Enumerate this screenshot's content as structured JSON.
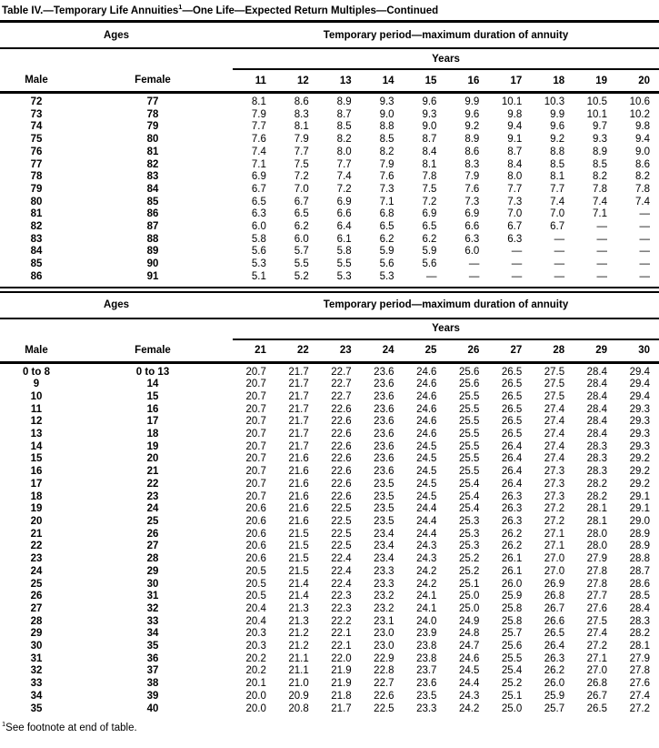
{
  "title": {
    "prefix": "Table IV.—Temporary Life Annuities",
    "footnote_marker": "1",
    "suffix": "—One Life—Expected Return Multiples—Continued"
  },
  "labels": {
    "ages": "Ages",
    "period": "Temporary period—maximum duration of annuity",
    "years": "Years",
    "male": "Male",
    "female": "Female"
  },
  "colors": {
    "text": "#000000",
    "background": "#ffffff",
    "rule": "#000000"
  },
  "footnote": {
    "marker": "1",
    "text": "See footnote at end of table."
  },
  "tables": [
    {
      "years": [
        "11",
        "12",
        "13",
        "14",
        "15",
        "16",
        "17",
        "18",
        "19",
        "20"
      ],
      "rows": [
        {
          "male": "72",
          "female": "77",
          "values": [
            "8.1",
            "8.6",
            "8.9",
            "9.3",
            "9.6",
            "9.9",
            "10.1",
            "10.3",
            "10.5",
            "10.6"
          ]
        },
        {
          "male": "73",
          "female": "78",
          "values": [
            "7.9",
            "8.3",
            "8.7",
            "9.0",
            "9.3",
            "9.6",
            "9.8",
            "9.9",
            "10.1",
            "10.2"
          ]
        },
        {
          "male": "74",
          "female": "79",
          "values": [
            "7.7",
            "8.1",
            "8.5",
            "8.8",
            "9.0",
            "9.2",
            "9.4",
            "9.6",
            "9.7",
            "9.8"
          ]
        },
        {
          "male": "75",
          "female": "80",
          "values": [
            "7.6",
            "7.9",
            "8.2",
            "8.5",
            "8.7",
            "8.9",
            "9.1",
            "9.2",
            "9.3",
            "9.4"
          ]
        },
        {
          "male": "76",
          "female": "81",
          "values": [
            "7.4",
            "7.7",
            "8.0",
            "8.2",
            "8.4",
            "8.6",
            "8.7",
            "8.8",
            "8.9",
            "9.0"
          ]
        },
        {
          "male": "77",
          "female": "82",
          "values": [
            "7.1",
            "7.5",
            "7.7",
            "7.9",
            "8.1",
            "8.3",
            "8.4",
            "8.5",
            "8.5",
            "8.6"
          ]
        },
        {
          "male": "78",
          "female": "83",
          "values": [
            "6.9",
            "7.2",
            "7.4",
            "7.6",
            "7.8",
            "7.9",
            "8.0",
            "8.1",
            "8.2",
            "8.2"
          ]
        },
        {
          "male": "79",
          "female": "84",
          "values": [
            "6.7",
            "7.0",
            "7.2",
            "7.3",
            "7.5",
            "7.6",
            "7.7",
            "7.7",
            "7.8",
            "7.8"
          ]
        },
        {
          "male": "80",
          "female": "85",
          "values": [
            "6.5",
            "6.7",
            "6.9",
            "7.1",
            "7.2",
            "7.3",
            "7.3",
            "7.4",
            "7.4",
            "7.4"
          ]
        },
        {
          "male": "81",
          "female": "86",
          "values": [
            "6.3",
            "6.5",
            "6.6",
            "6.8",
            "6.9",
            "6.9",
            "7.0",
            "7.0",
            "7.1",
            "—"
          ]
        },
        {
          "male": "82",
          "female": "87",
          "values": [
            "6.0",
            "6.2",
            "6.4",
            "6.5",
            "6.5",
            "6.6",
            "6.7",
            "6.7",
            "—",
            "—"
          ]
        },
        {
          "male": "83",
          "female": "88",
          "values": [
            "5.8",
            "6.0",
            "6.1",
            "6.2",
            "6.2",
            "6.3",
            "6.3",
            "—",
            "—",
            "—"
          ]
        },
        {
          "male": "84",
          "female": "89",
          "values": [
            "5.6",
            "5.7",
            "5.8",
            "5.9",
            "5.9",
            "6.0",
            "—",
            "—",
            "—",
            "—"
          ]
        },
        {
          "male": "85",
          "female": "90",
          "values": [
            "5.3",
            "5.5",
            "5.5",
            "5.6",
            "5.6",
            "—",
            "—",
            "—",
            "—",
            "—"
          ]
        },
        {
          "male": "86",
          "female": "91",
          "values": [
            "5.1",
            "5.2",
            "5.3",
            "5.3",
            "—",
            "—",
            "—",
            "—",
            "—",
            "—"
          ]
        }
      ]
    },
    {
      "years": [
        "21",
        "22",
        "23",
        "24",
        "25",
        "26",
        "27",
        "28",
        "29",
        "30"
      ],
      "rows": [
        {
          "male": "0 to 8",
          "female": "0 to 13",
          "values": [
            "20.7",
            "21.7",
            "22.7",
            "23.6",
            "24.6",
            "25.6",
            "26.5",
            "27.5",
            "28.4",
            "29.4"
          ]
        },
        {
          "male": "9",
          "female": "14",
          "values": [
            "20.7",
            "21.7",
            "22.7",
            "23.6",
            "24.6",
            "25.6",
            "26.5",
            "27.5",
            "28.4",
            "29.4"
          ]
        },
        {
          "male": "10",
          "female": "15",
          "values": [
            "20.7",
            "21.7",
            "22.7",
            "23.6",
            "24.6",
            "25.5",
            "26.5",
            "27.5",
            "28.4",
            "29.4"
          ]
        },
        {
          "male": "11",
          "female": "16",
          "values": [
            "20.7",
            "21.7",
            "22.6",
            "23.6",
            "24.6",
            "25.5",
            "26.5",
            "27.4",
            "28.4",
            "29.3"
          ]
        },
        {
          "male": "12",
          "female": "17",
          "values": [
            "20.7",
            "21.7",
            "22.6",
            "23.6",
            "24.6",
            "25.5",
            "26.5",
            "27.4",
            "28.4",
            "29.3"
          ]
        },
        {
          "male": "13",
          "female": "18",
          "values": [
            "20.7",
            "21.7",
            "22.6",
            "23.6",
            "24.6",
            "25.5",
            "26.5",
            "27.4",
            "28.4",
            "29.3"
          ]
        },
        {
          "male": "14",
          "female": "19",
          "values": [
            "20.7",
            "21.7",
            "22.6",
            "23.6",
            "24.5",
            "25.5",
            "26.4",
            "27.4",
            "28.3",
            "29.3"
          ]
        },
        {
          "male": "15",
          "female": "20",
          "values": [
            "20.7",
            "21.6",
            "22.6",
            "23.6",
            "24.5",
            "25.5",
            "26.4",
            "27.4",
            "28.3",
            "29.2"
          ]
        },
        {
          "male": "16",
          "female": "21",
          "values": [
            "20.7",
            "21.6",
            "22.6",
            "23.6",
            "24.5",
            "25.5",
            "26.4",
            "27.3",
            "28.3",
            "29.2"
          ]
        },
        {
          "male": "17",
          "female": "22",
          "values": [
            "20.7",
            "21.6",
            "22.6",
            "23.5",
            "24.5",
            "25.4",
            "26.4",
            "27.3",
            "28.2",
            "29.2"
          ]
        },
        {
          "male": "18",
          "female": "23",
          "values": [
            "20.7",
            "21.6",
            "22.6",
            "23.5",
            "24.5",
            "25.4",
            "26.3",
            "27.3",
            "28.2",
            "29.1"
          ]
        },
        {
          "male": "19",
          "female": "24",
          "values": [
            "20.6",
            "21.6",
            "22.5",
            "23.5",
            "24.4",
            "25.4",
            "26.3",
            "27.2",
            "28.1",
            "29.1"
          ]
        },
        {
          "male": "20",
          "female": "25",
          "values": [
            "20.6",
            "21.6",
            "22.5",
            "23.5",
            "24.4",
            "25.3",
            "26.3",
            "27.2",
            "28.1",
            "29.0"
          ]
        },
        {
          "male": "21",
          "female": "26",
          "values": [
            "20.6",
            "21.5",
            "22.5",
            "23.4",
            "24.4",
            "25.3",
            "26.2",
            "27.1",
            "28.0",
            "28.9"
          ]
        },
        {
          "male": "22",
          "female": "27",
          "values": [
            "20.6",
            "21.5",
            "22.5",
            "23.4",
            "24.3",
            "25.3",
            "26.2",
            "27.1",
            "28.0",
            "28.9"
          ]
        },
        {
          "male": "23",
          "female": "28",
          "values": [
            "20.6",
            "21.5",
            "22.4",
            "23.4",
            "24.3",
            "25.2",
            "26.1",
            "27.0",
            "27.9",
            "28.8"
          ]
        },
        {
          "male": "24",
          "female": "29",
          "values": [
            "20.5",
            "21.5",
            "22.4",
            "23.3",
            "24.2",
            "25.2",
            "26.1",
            "27.0",
            "27.8",
            "28.7"
          ]
        },
        {
          "male": "25",
          "female": "30",
          "values": [
            "20.5",
            "21.4",
            "22.4",
            "23.3",
            "24.2",
            "25.1",
            "26.0",
            "26.9",
            "27.8",
            "28.6"
          ]
        },
        {
          "male": "26",
          "female": "31",
          "values": [
            "20.5",
            "21.4",
            "22.3",
            "23.2",
            "24.1",
            "25.0",
            "25.9",
            "26.8",
            "27.7",
            "28.5"
          ]
        },
        {
          "male": "27",
          "female": "32",
          "values": [
            "20.4",
            "21.3",
            "22.3",
            "23.2",
            "24.1",
            "25.0",
            "25.8",
            "26.7",
            "27.6",
            "28.4"
          ]
        },
        {
          "male": "28",
          "female": "33",
          "values": [
            "20.4",
            "21.3",
            "22.2",
            "23.1",
            "24.0",
            "24.9",
            "25.8",
            "26.6",
            "27.5",
            "28.3"
          ]
        },
        {
          "male": "29",
          "female": "34",
          "values": [
            "20.3",
            "21.2",
            "22.1",
            "23.0",
            "23.9",
            "24.8",
            "25.7",
            "26.5",
            "27.4",
            "28.2"
          ]
        },
        {
          "male": "30",
          "female": "35",
          "values": [
            "20.3",
            "21.2",
            "22.1",
            "23.0",
            "23.8",
            "24.7",
            "25.6",
            "26.4",
            "27.2",
            "28.1"
          ]
        },
        {
          "male": "31",
          "female": "36",
          "values": [
            "20.2",
            "21.1",
            "22.0",
            "22.9",
            "23.8",
            "24.6",
            "25.5",
            "26.3",
            "27.1",
            "27.9"
          ]
        },
        {
          "male": "32",
          "female": "37",
          "values": [
            "20.2",
            "21.1",
            "21.9",
            "22.8",
            "23.7",
            "24.5",
            "25.4",
            "26.2",
            "27.0",
            "27.8"
          ]
        },
        {
          "male": "33",
          "female": "38",
          "values": [
            "20.1",
            "21.0",
            "21.9",
            "22.7",
            "23.6",
            "24.4",
            "25.2",
            "26.0",
            "26.8",
            "27.6"
          ]
        },
        {
          "male": "34",
          "female": "39",
          "values": [
            "20.0",
            "20.9",
            "21.8",
            "22.6",
            "23.5",
            "24.3",
            "25.1",
            "25.9",
            "26.7",
            "27.4"
          ]
        },
        {
          "male": "35",
          "female": "40",
          "values": [
            "20.0",
            "20.8",
            "21.7",
            "22.5",
            "23.3",
            "24.2",
            "25.0",
            "25.7",
            "26.5",
            "27.2"
          ]
        }
      ]
    }
  ]
}
